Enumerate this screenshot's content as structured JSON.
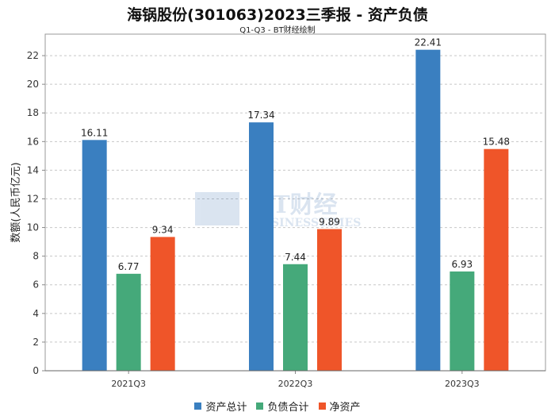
{
  "chart_data": {
    "type": "bar",
    "title": "海锅股份(301063)2023三季报 - 资产负债",
    "subtitle": "Q1-Q3 - BT财经绘制",
    "watermark": "BT财经 BUSINESSTIMES",
    "ylabel": "数额(人民币亿元)",
    "xlabel": "",
    "ylim": [
      0,
      23.5
    ],
    "yticks": [
      0,
      2,
      4,
      6,
      8,
      10,
      12,
      14,
      16,
      18,
      20,
      22
    ],
    "grid": true,
    "legend_position": "bottom",
    "categories": [
      "2021Q3",
      "2022Q3",
      "2023Q3"
    ],
    "series": [
      {
        "name": "资产总计",
        "color": "#3a7fc0",
        "values": [
          16.11,
          17.34,
          22.41
        ],
        "labels": [
          "16.11",
          "17.34",
          "22.41"
        ]
      },
      {
        "name": "负债合计",
        "color": "#45a97a",
        "values": [
          6.77,
          7.44,
          6.93
        ],
        "labels": [
          "6.77",
          "7.44",
          "6.93"
        ]
      },
      {
        "name": "净资产",
        "color": "#ef5529",
        "values": [
          9.34,
          9.89,
          15.48
        ],
        "labels": [
          "9.34",
          "9.89",
          "15.48"
        ]
      }
    ]
  }
}
